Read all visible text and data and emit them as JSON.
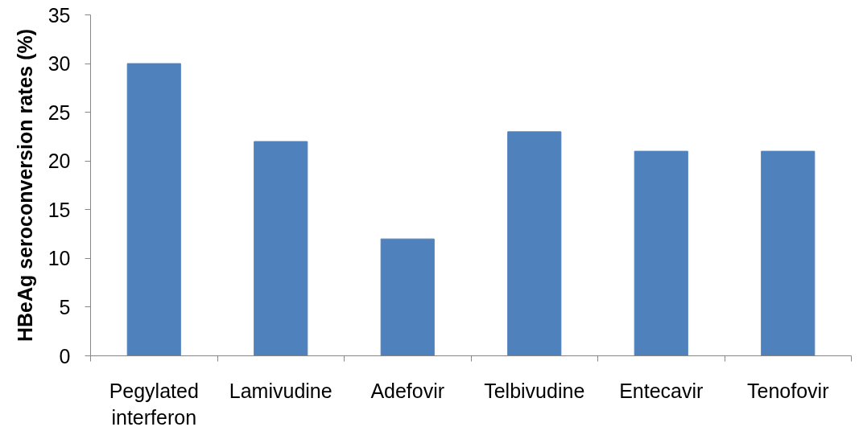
{
  "chart_data": {
    "type": "bar",
    "ylabel": "HBeAg seroconversion rates (%)",
    "categories": [
      "Pegylated interferon",
      "Lamivudine",
      "Adefovir",
      "Telbivudine",
      "Entecavir",
      "Tenofovir"
    ],
    "values": [
      30,
      22,
      12,
      23,
      21,
      21
    ],
    "color": "#4f81bd",
    "ylim": [
      0,
      35
    ],
    "yticks": [
      0,
      5,
      10,
      15,
      20,
      25,
      30,
      35
    ],
    "grid": false
  }
}
